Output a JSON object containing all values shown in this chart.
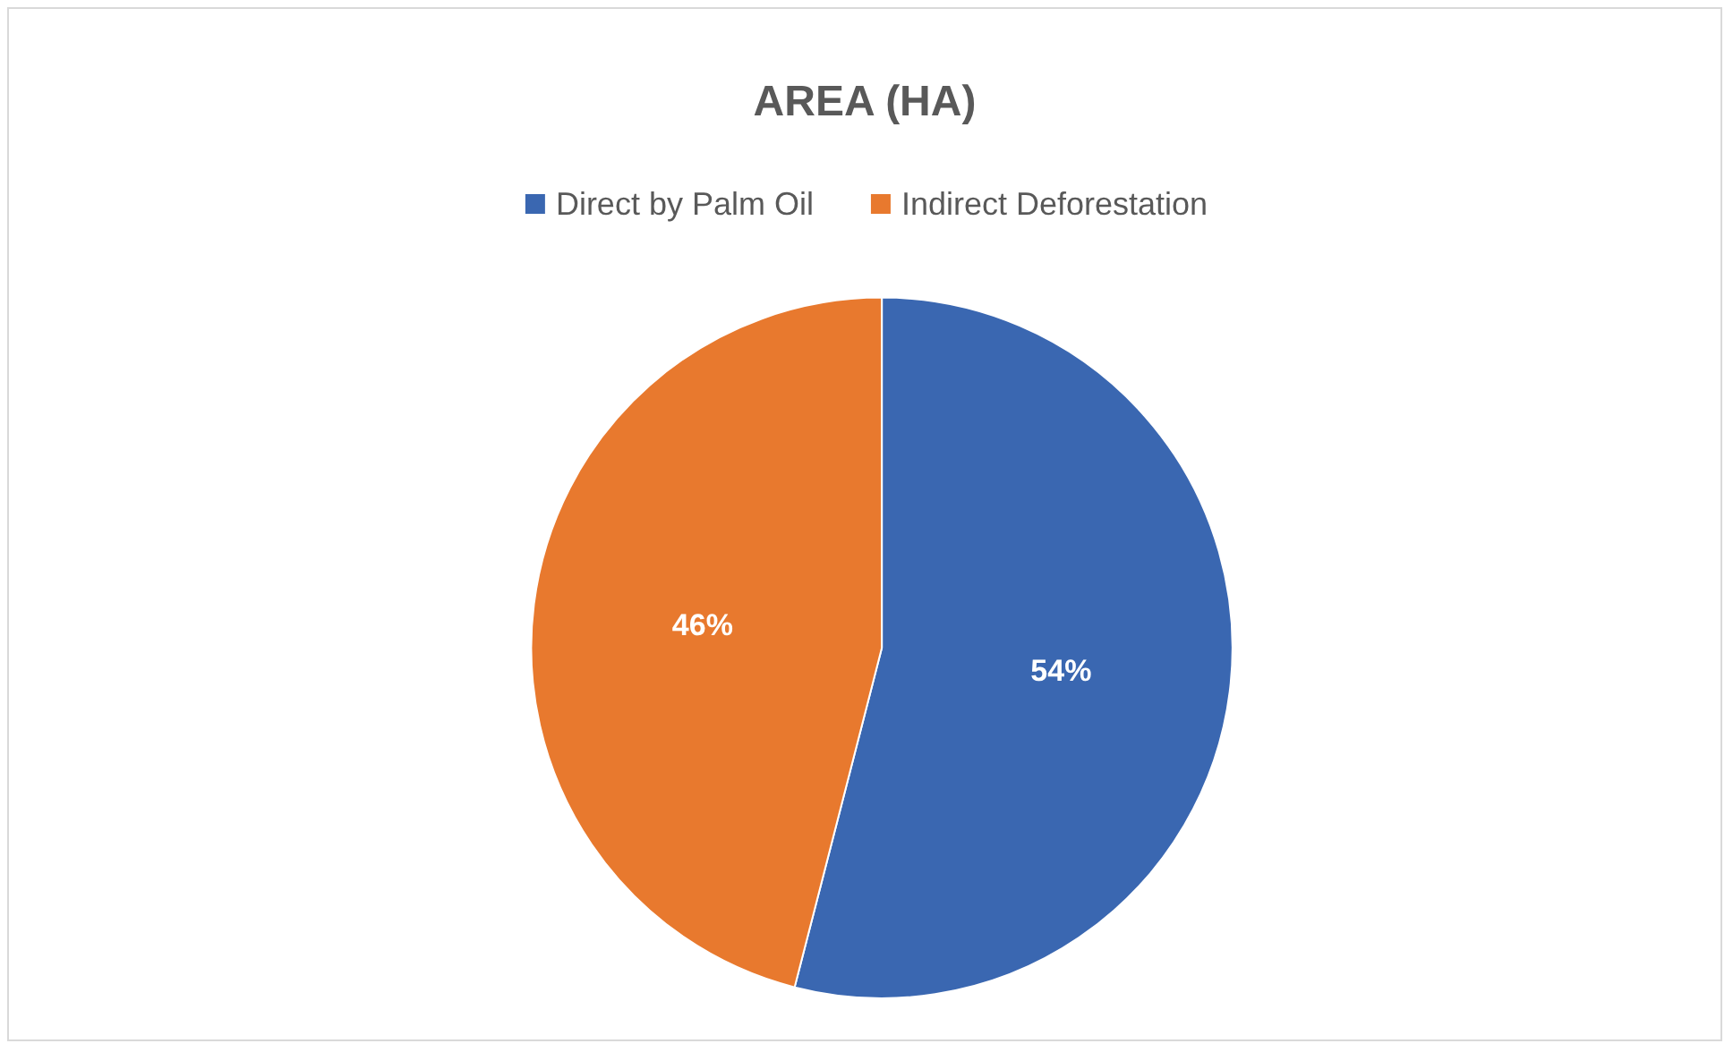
{
  "chart_data": {
    "type": "pie",
    "title": "AREA (HA)",
    "categories": [
      "Direct by Palm Oil",
      "Indirect Deforestation"
    ],
    "values": [
      54,
      46
    ],
    "colors": [
      "#3a67b1",
      "#e8792e"
    ],
    "value_labels": [
      "54%",
      "46%"
    ],
    "legend": "top"
  }
}
